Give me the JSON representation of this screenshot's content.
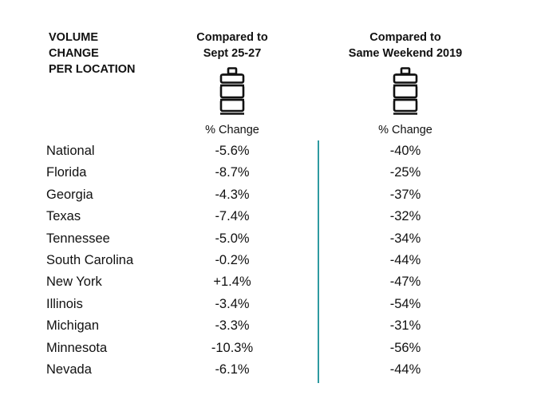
{
  "title_lines": [
    "VOLUME",
    "CHANGE",
    "PER LOCATION"
  ],
  "columns": [
    {
      "header_lines": [
        "Compared to",
        "Sept 25-27"
      ],
      "sub": "% Change"
    },
    {
      "header_lines": [
        "Compared to",
        "Same Weekend 2019"
      ],
      "sub": "% Change"
    }
  ],
  "icon": "keg-icon",
  "colors": {
    "divider": "#2e9aa0",
    "text": "#111111"
  },
  "rows": [
    {
      "location": "National",
      "vs_sept": "-5.6%",
      "vs_2019": "-40%"
    },
    {
      "location": "Florida",
      "vs_sept": "-8.7%",
      "vs_2019": "-25%"
    },
    {
      "location": "Georgia",
      "vs_sept": "-4.3%",
      "vs_2019": "-37%"
    },
    {
      "location": "Texas",
      "vs_sept": "-7.4%",
      "vs_2019": "-32%"
    },
    {
      "location": "Tennessee",
      "vs_sept": "-5.0%",
      "vs_2019": "-34%"
    },
    {
      "location": "South Carolina",
      "vs_sept": "-0.2%",
      "vs_2019": "-44%"
    },
    {
      "location": "New York",
      "vs_sept": "+1.4%",
      "vs_2019": "-47%"
    },
    {
      "location": "Illinois",
      "vs_sept": "-3.4%",
      "vs_2019": "-54%"
    },
    {
      "location": "Michigan",
      "vs_sept": "-3.3%",
      "vs_2019": "-31%"
    },
    {
      "location": "Minnesota",
      "vs_sept": "-10.3%",
      "vs_2019": "-56%"
    },
    {
      "location": "Nevada",
      "vs_sept": "-6.1%",
      "vs_2019": "-44%"
    }
  ]
}
